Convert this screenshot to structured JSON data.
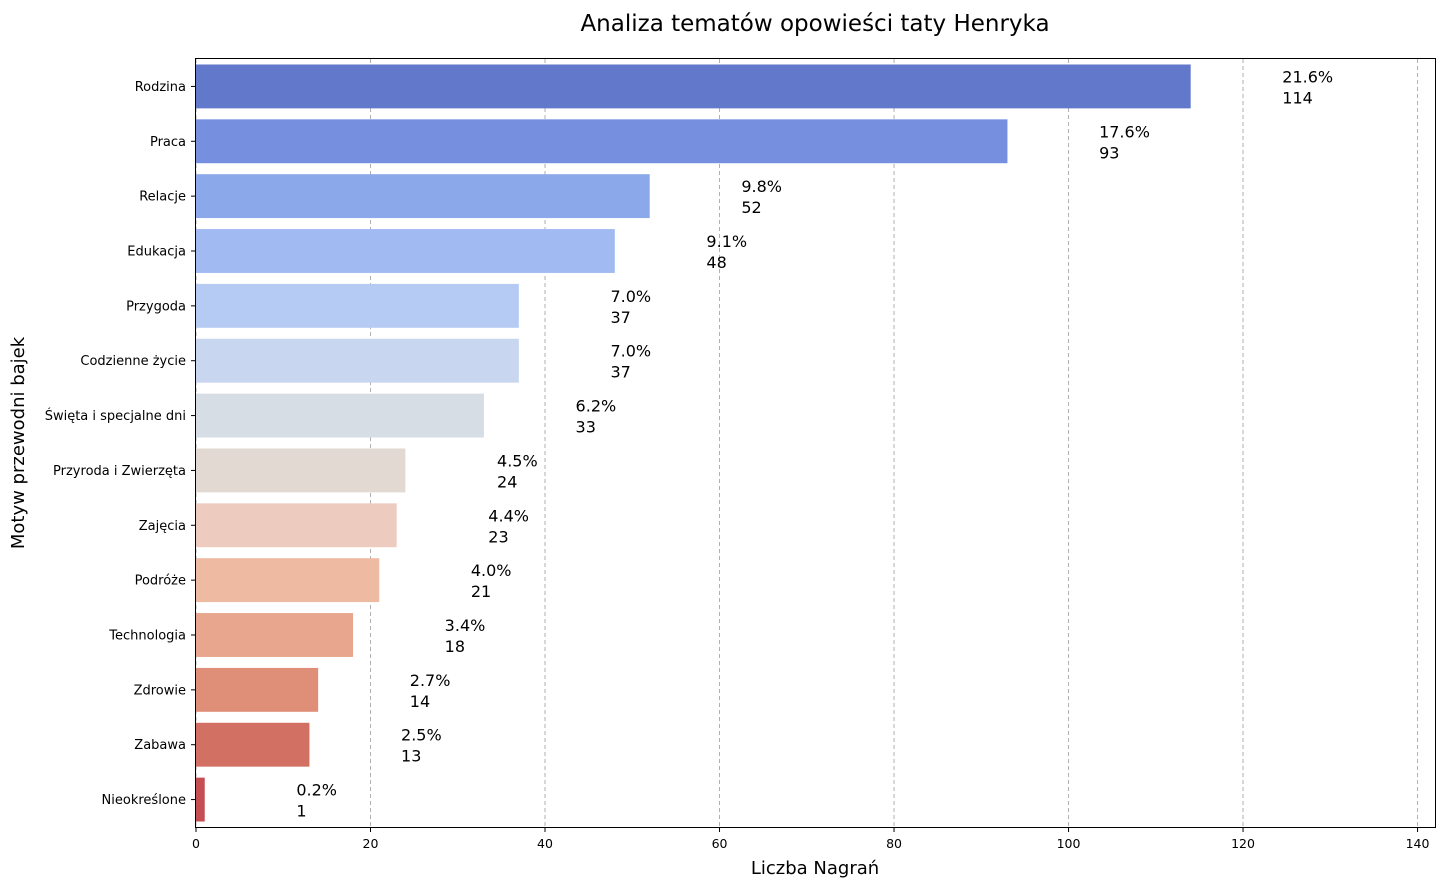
{
  "chart_data": {
    "type": "bar",
    "orientation": "horizontal",
    "title": "Analiza tematów opowieści taty Henryka",
    "xlabel": "Liczba Nagrań",
    "ylabel": "Motyw przewodni bajek",
    "xlim": [
      0,
      142
    ],
    "xticks": [
      0,
      20,
      40,
      60,
      80,
      100,
      120,
      140
    ],
    "grid": "x-dashed",
    "categories": [
      "Rodzina",
      "Praca",
      "Relacje",
      "Edukacja",
      "Przygoda",
      "Codzienne życie",
      "Święta i specjalne dni",
      "Przyroda i Zwierzęta",
      "Zajęcia",
      "Podróże",
      "Technologia",
      "Zdrowie",
      "Zabawa",
      "Nieokreślone"
    ],
    "values": [
      114,
      93,
      52,
      48,
      37,
      37,
      33,
      24,
      23,
      21,
      18,
      14,
      13,
      1
    ],
    "percent_labels": [
      "21.6%",
      "17.6%",
      "9.8%",
      "9.1%",
      "7.0%",
      "7.0%",
      "6.2%",
      "4.5%",
      "4.4%",
      "4.0%",
      "3.4%",
      "2.7%",
      "2.5%",
      "0.2%"
    ],
    "count_labels": [
      "114",
      "93",
      "52",
      "48",
      "37",
      "37",
      "33",
      "24",
      "23",
      "21",
      "18",
      "14",
      "13",
      "1"
    ],
    "colors": [
      "#6278cb",
      "#7690df",
      "#8ba8ea",
      "#a1bbf2",
      "#b5cbf4",
      "#c8d6ef",
      "#d6dde4",
      "#e2d9d3",
      "#edccbf",
      "#eebba2",
      "#e8a68e",
      "#df8e78",
      "#d27064",
      "#c44e52"
    ]
  }
}
